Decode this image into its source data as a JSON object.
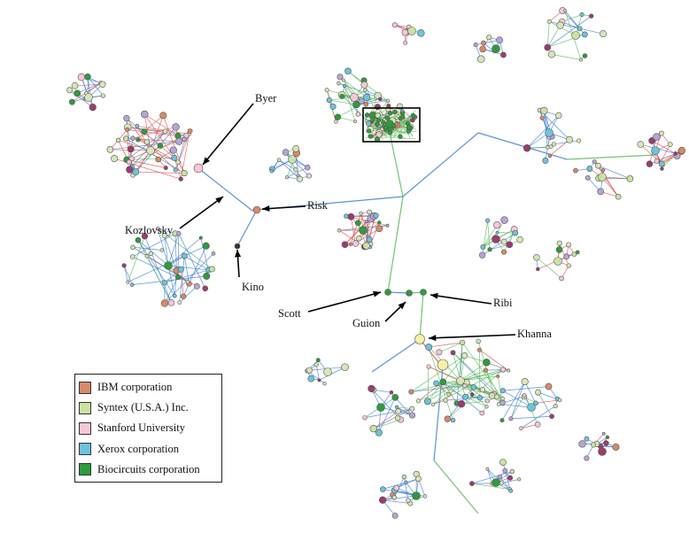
{
  "legend": {
    "items": [
      {
        "label": "IBM corporation",
        "color": "#d98a66"
      },
      {
        "label": "Syntex (U.S.A.) Inc.",
        "color": "#c9e3a3"
      },
      {
        "label": "Stanford University",
        "color": "#f6c7d8"
      },
      {
        "label": "Xerox corporation",
        "color": "#6cc3dd"
      },
      {
        "label": "Biocircuits corporation",
        "color": "#2e9b3d"
      }
    ]
  },
  "labels": {
    "byer": "Byer",
    "kozlovsky": "Kozlovsky",
    "risk": "Risk",
    "kino": "Kino",
    "scott": "Scott",
    "guion": "Guion",
    "ribi": "Ribi",
    "khanna": "Khanna"
  },
  "colors": {
    "edge_blue": "#3f7fcf",
    "edge_green": "#5cb85c",
    "edge_red": "#d9534f",
    "node_default": "#d7e6b6",
    "highlight_box": "#000000"
  }
}
